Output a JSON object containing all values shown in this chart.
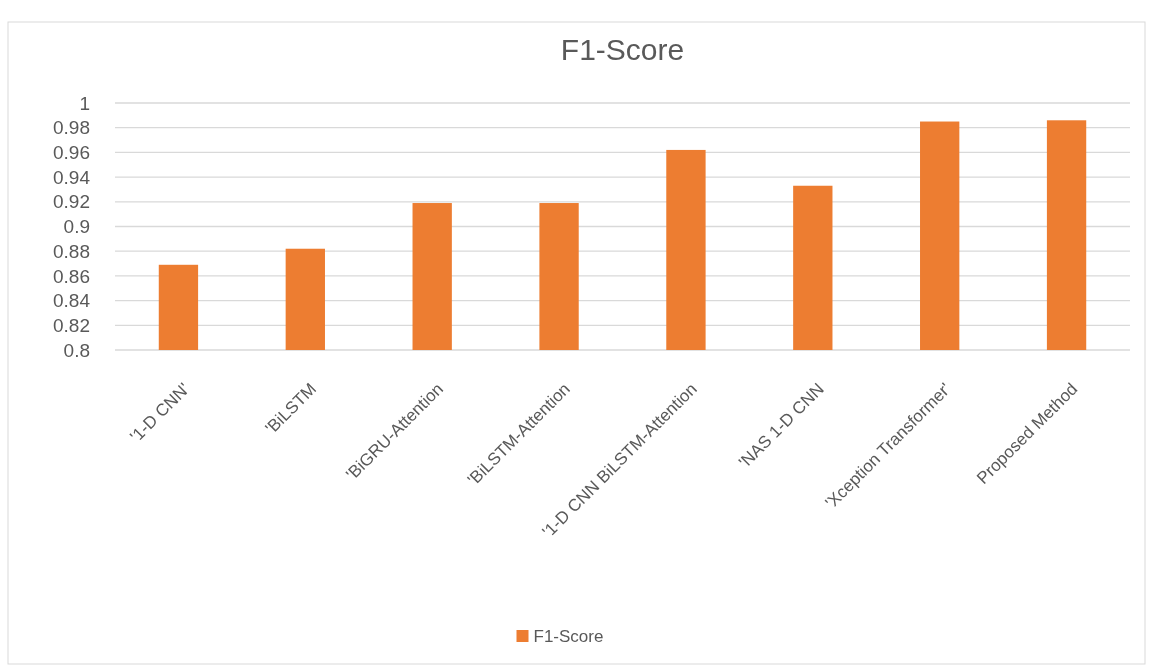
{
  "chart_data": {
    "type": "bar",
    "title": "F1-Score",
    "categories": [
      "'1-D CNN'",
      "'BiLSTM",
      "'BiGRU-Attention",
      "'BiLSTM-Attention",
      "'1-D CNN BiLSTM-Attention",
      "'NAS 1-D CNN",
      "'Xception Transformer'",
      "Proposed Method"
    ],
    "series": [
      {
        "name": "F1-Score",
        "color": "#ed7d31",
        "values": [
          0.869,
          0.882,
          0.919,
          0.919,
          0.962,
          0.933,
          0.985,
          0.986
        ]
      }
    ],
    "ylim": [
      0.8,
      1
    ],
    "yticks": [
      0.8,
      0.82,
      0.84,
      0.86,
      0.88,
      0.9,
      0.92,
      0.94,
      0.96,
      0.98,
      1
    ],
    "grid": "y",
    "legend": "bottom"
  }
}
